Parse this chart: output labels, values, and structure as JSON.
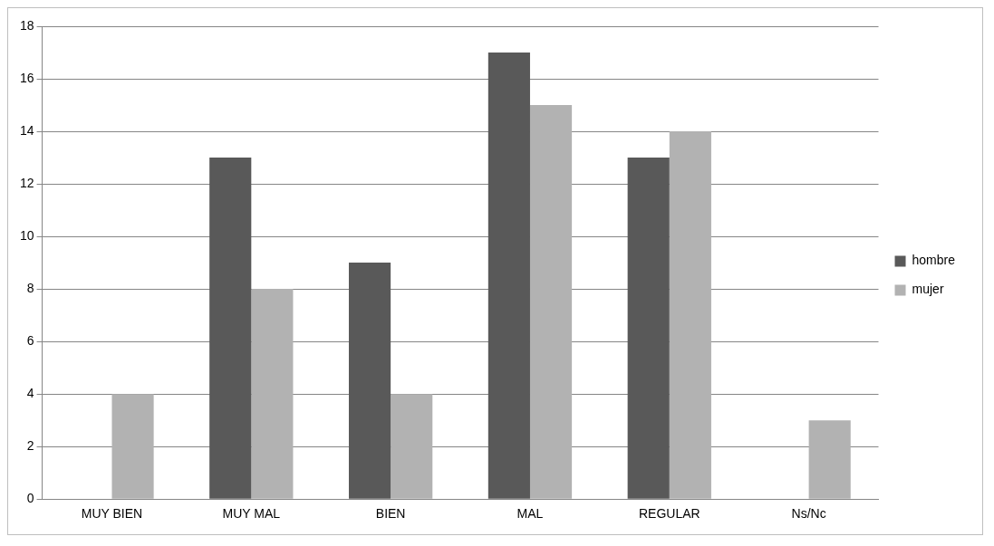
{
  "chart_data": {
    "type": "bar",
    "categories": [
      "MUY BIEN",
      "MUY MAL",
      "BIEN",
      "MAL",
      "REGULAR",
      "Ns/Nc"
    ],
    "series": [
      {
        "name": "hombre",
        "color": "#595959",
        "values": [
          0,
          13,
          9,
          17,
          13,
          0
        ]
      },
      {
        "name": "mujer",
        "color": "#b2b2b2",
        "values": [
          4,
          8,
          4,
          15,
          14,
          3
        ]
      }
    ],
    "ylim": [
      0,
      18
    ],
    "yticks": [
      0,
      2,
      4,
      6,
      8,
      10,
      12,
      14,
      16,
      18
    ],
    "grid": "y",
    "legend": "right"
  }
}
